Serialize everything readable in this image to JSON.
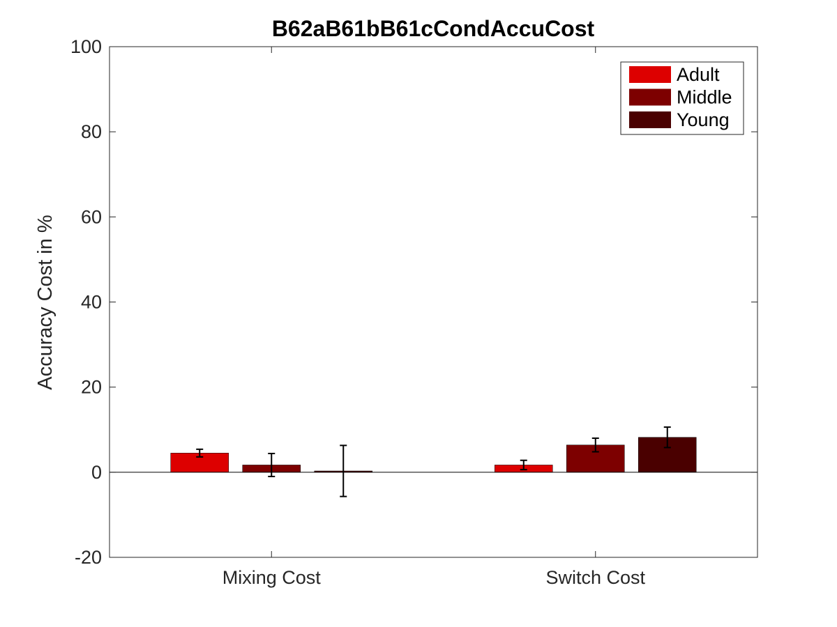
{
  "chart_data": {
    "type": "bar",
    "title": "B62aB61bB61cCondAccuCost",
    "xlabel": "",
    "ylabel": "Accuracy Cost in %",
    "categories": [
      "Mixing Cost",
      "Switch Cost"
    ],
    "ylim": [
      -20,
      100
    ],
    "yticks": [
      "-20",
      "0",
      "20",
      "40",
      "60",
      "80",
      "100"
    ],
    "grid": false,
    "legend_position": "top-right",
    "series": [
      {
        "name": "Adult",
        "color": "#dd0000",
        "values": [
          4.5,
          1.7
        ],
        "error": [
          0.9,
          1.1
        ]
      },
      {
        "name": "Middle",
        "color": "#7d0000",
        "values": [
          1.7,
          6.4
        ],
        "error": [
          2.7,
          1.6
        ]
      },
      {
        "name": "Young",
        "color": "#4a0000",
        "values": [
          0.3,
          8.2
        ],
        "error": [
          6.0,
          2.4
        ]
      }
    ]
  }
}
